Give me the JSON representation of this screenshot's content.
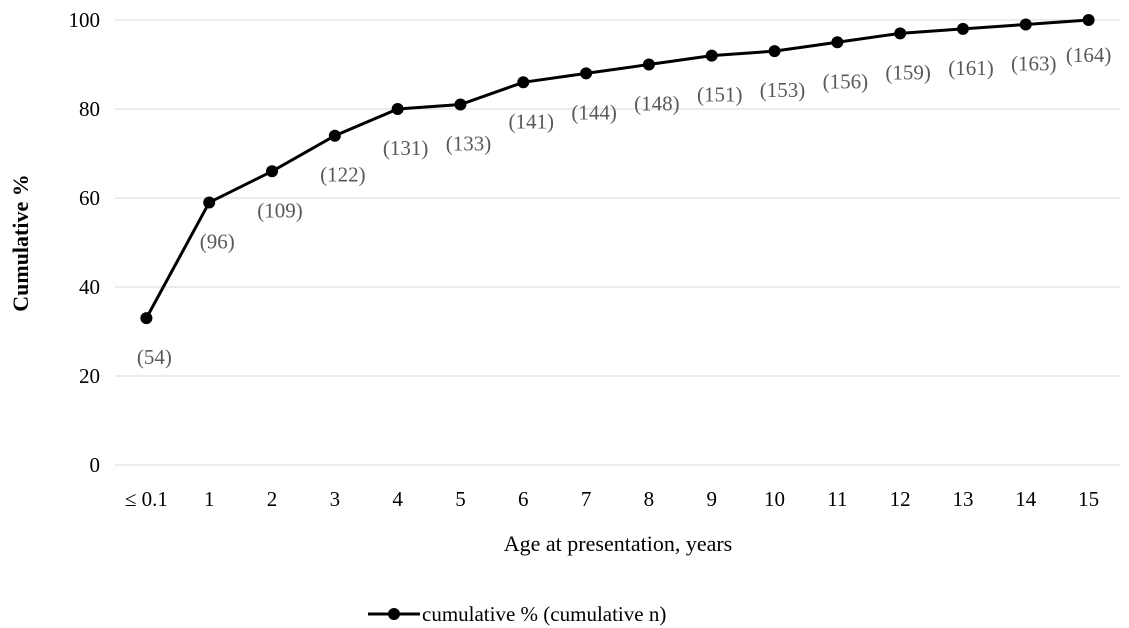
{
  "chart_data": {
    "type": "line",
    "title": "",
    "xlabel": "Age at presentation, years",
    "ylabel": "Cumulative %",
    "categories": [
      "≤ 0.1",
      "1",
      "2",
      "3",
      "4",
      "5",
      "6",
      "7",
      "8",
      "9",
      "10",
      "11",
      "12",
      "13",
      "14",
      "15"
    ],
    "series": [
      {
        "name": "cumulative % (cumulative n)",
        "values": [
          33,
          59,
          66,
          74,
          80,
          81,
          86,
          88,
          90,
          92,
          93,
          95,
          97,
          98,
          99,
          100
        ],
        "labels": [
          "(54)",
          "(96)",
          "(109)",
          "(122)",
          "(131)",
          "(133)",
          "(141)",
          "(144)",
          "(148)",
          "(151)",
          "(153)",
          "(156)",
          "(159)",
          "(161)",
          "(163)",
          "(164)"
        ],
        "color": "#000000"
      }
    ],
    "ylim": [
      0,
      100
    ],
    "yticks": [
      0,
      20,
      40,
      60,
      80,
      100
    ],
    "grid": true,
    "gridColor": "#d9d9d9",
    "labelColor": "#595959",
    "legend": "bottom-center"
  }
}
